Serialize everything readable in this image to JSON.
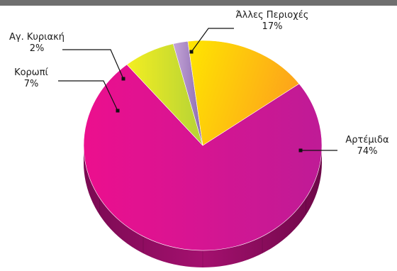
{
  "chart_data": {
    "type": "pie",
    "style": "3d",
    "title": "",
    "slices": [
      {
        "label": "Αρτέμιδα",
        "value_label": "74%",
        "value": 74,
        "color": "#d4159a"
      },
      {
        "label": "Κορωπί",
        "value_label": "7%",
        "value": 7,
        "color": "#d8e42a"
      },
      {
        "label": "Αγ. Κυριακή",
        "value_label": "2%",
        "value": 2,
        "color": "#a78bc4"
      },
      {
        "label": "Άλλες Περιοχές",
        "value_label": "17%",
        "value": 17,
        "color": "#fdc40f"
      }
    ]
  }
}
